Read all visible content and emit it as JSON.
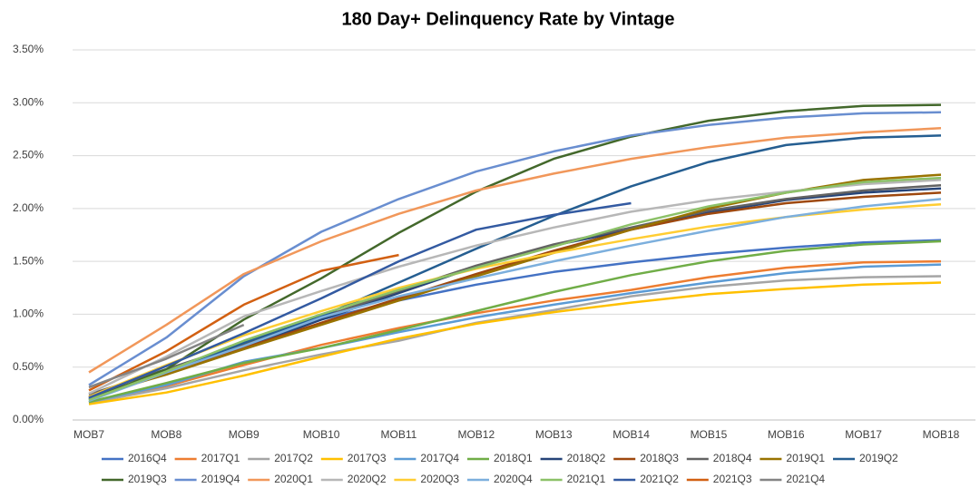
{
  "chart_data": {
    "type": "line",
    "title": "180 Day+ Delinquency Rate by Vintage",
    "categories": [
      "MOB7",
      "MOB8",
      "MOB9",
      "MOB10",
      "MOB11",
      "MOB12",
      "MOB13",
      "MOB14",
      "MOB15",
      "MOB16",
      "MOB17",
      "MOB18"
    ],
    "ylim": [
      0,
      3.5
    ],
    "yticks": [
      {
        "value": 0,
        "label": "0.00%"
      },
      {
        "value": 0.5,
        "label": "0.50%"
      },
      {
        "value": 1,
        "label": "1.00%"
      },
      {
        "value": 1.5,
        "label": "1.50%"
      },
      {
        "value": 2,
        "label": "2.00%"
      },
      {
        "value": 2.5,
        "label": "2.50%"
      },
      {
        "value": 3,
        "label": "3.00%"
      },
      {
        "value": 3.5,
        "label": "3.50%"
      }
    ],
    "grid": true,
    "legend": "bottom",
    "series": [
      {
        "name": "2016Q4",
        "color": "#4472C4",
        "values": [
          0.22,
          0.45,
          0.7,
          0.95,
          1.13,
          1.28,
          1.4,
          1.49,
          1.57,
          1.63,
          1.68,
          1.7
        ]
      },
      {
        "name": "2017Q1",
        "color": "#ED7D31",
        "values": [
          0.17,
          0.32,
          0.52,
          0.71,
          0.87,
          1.01,
          1.13,
          1.23,
          1.35,
          1.44,
          1.49,
          1.5
        ]
      },
      {
        "name": "2017Q2",
        "color": "#A5A5A5",
        "values": [
          0.16,
          0.3,
          0.47,
          0.62,
          0.75,
          0.92,
          1.04,
          1.17,
          1.26,
          1.32,
          1.35,
          1.36
        ]
      },
      {
        "name": "2017Q3",
        "color": "#FFC000",
        "values": [
          0.15,
          0.26,
          0.42,
          0.6,
          0.77,
          0.91,
          1.02,
          1.11,
          1.19,
          1.24,
          1.28,
          1.3
        ]
      },
      {
        "name": "2017Q4",
        "color": "#5B9BD5",
        "values": [
          0.17,
          0.33,
          0.55,
          0.68,
          0.83,
          0.97,
          1.09,
          1.2,
          1.3,
          1.39,
          1.45,
          1.47
        ]
      },
      {
        "name": "2018Q1",
        "color": "#70AD47",
        "values": [
          0.17,
          0.35,
          0.54,
          0.68,
          0.85,
          1.03,
          1.21,
          1.37,
          1.5,
          1.6,
          1.66,
          1.69
        ]
      },
      {
        "name": "2018Q2",
        "color": "#264478",
        "values": [
          0.2,
          0.44,
          0.68,
          0.95,
          1.2,
          1.45,
          1.65,
          1.8,
          1.96,
          2.08,
          2.15,
          2.19
        ]
      },
      {
        "name": "2018Q3",
        "color": "#9E480E",
        "values": [
          0.22,
          0.45,
          0.68,
          0.92,
          1.15,
          1.38,
          1.6,
          1.8,
          1.95,
          2.05,
          2.11,
          2.15
        ]
      },
      {
        "name": "2018Q4",
        "color": "#636363",
        "values": [
          0.24,
          0.48,
          0.72,
          0.97,
          1.22,
          1.46,
          1.66,
          1.82,
          1.98,
          2.09,
          2.17,
          2.22
        ]
      },
      {
        "name": "2019Q1",
        "color": "#997300",
        "values": [
          0.22,
          0.43,
          0.67,
          0.9,
          1.13,
          1.36,
          1.58,
          1.8,
          2.0,
          2.15,
          2.27,
          2.32
        ]
      },
      {
        "name": "2019Q2",
        "color": "#255E91",
        "values": [
          0.2,
          0.45,
          0.73,
          0.98,
          1.3,
          1.62,
          1.93,
          2.21,
          2.44,
          2.6,
          2.67,
          2.69
        ]
      },
      {
        "name": "2019Q3",
        "color": "#43682B",
        "values": [
          0.19,
          0.48,
          0.95,
          1.34,
          1.77,
          2.16,
          2.47,
          2.68,
          2.83,
          2.92,
          2.97,
          2.98
        ]
      },
      {
        "name": "2019Q4",
        "color": "#698ED0",
        "values": [
          0.33,
          0.78,
          1.36,
          1.78,
          2.09,
          2.35,
          2.54,
          2.69,
          2.79,
          2.86,
          2.9,
          2.91
        ]
      },
      {
        "name": "2020Q1",
        "color": "#F1975A",
        "values": [
          0.45,
          0.9,
          1.38,
          1.69,
          1.95,
          2.17,
          2.33,
          2.47,
          2.58,
          2.67,
          2.72,
          2.76
        ]
      },
      {
        "name": "2020Q2",
        "color": "#B7B7B7",
        "values": [
          0.25,
          0.6,
          0.98,
          1.22,
          1.45,
          1.65,
          1.82,
          1.97,
          2.08,
          2.16,
          2.23,
          2.27
        ]
      },
      {
        "name": "2020Q3",
        "color": "#FFCD33",
        "values": [
          0.22,
          0.52,
          0.8,
          1.03,
          1.25,
          1.43,
          1.58,
          1.71,
          1.83,
          1.92,
          1.99,
          2.04
        ]
      },
      {
        "name": "2020Q4",
        "color": "#7CAFDD",
        "values": [
          0.18,
          0.45,
          0.7,
          0.97,
          1.17,
          1.34,
          1.5,
          1.65,
          1.79,
          1.92,
          2.02,
          2.09
        ]
      },
      {
        "name": "2021Q1",
        "color": "#8CC168",
        "values": [
          0.19,
          0.46,
          0.75,
          1.0,
          1.23,
          1.44,
          1.64,
          1.85,
          2.02,
          2.15,
          2.25,
          2.29
        ]
      },
      {
        "name": "2021Q2",
        "color": "#335AA1",
        "values": [
          0.21,
          0.51,
          0.82,
          1.15,
          1.5,
          1.8,
          1.94,
          2.05,
          null,
          null,
          null,
          null
        ]
      },
      {
        "name": "2021Q3",
        "color": "#D26012",
        "values": [
          0.28,
          0.65,
          1.09,
          1.41,
          1.56,
          null,
          null,
          null,
          null,
          null,
          null,
          null
        ]
      },
      {
        "name": "2021Q4",
        "color": "#848484",
        "values": [
          0.31,
          0.58,
          0.9,
          null,
          null,
          null,
          null,
          null,
          null,
          null,
          null,
          null
        ]
      }
    ]
  }
}
